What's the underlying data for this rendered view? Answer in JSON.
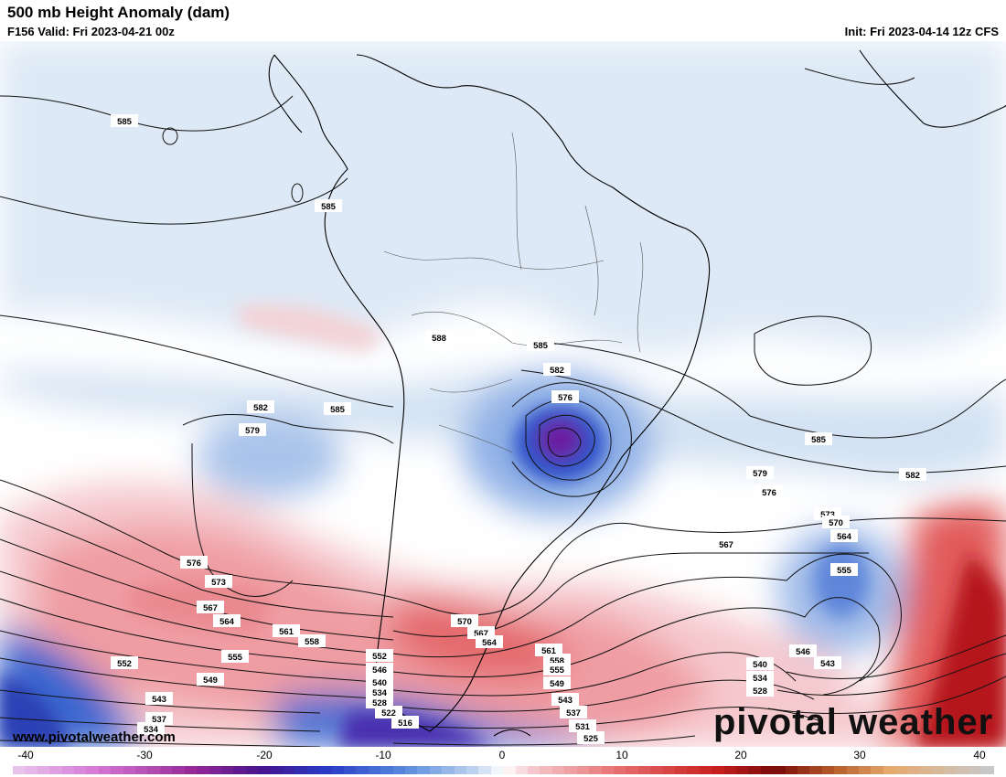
{
  "header": {
    "title": "500 mb Height Anomaly (dam)",
    "valid": "F156 Valid: Fri 2023-04-21 00z",
    "init": "Init: Fri 2023-04-14 12z CFS"
  },
  "watermark": "www.pivotalweather.com",
  "brand": "pivotal weather",
  "colorbar": {
    "ticks": [
      "-40",
      "-30",
      "-20",
      "-10",
      "0",
      "10",
      "20",
      "30",
      "40"
    ]
  },
  "contour_labels": [
    "585",
    "585",
    "585",
    "588",
    "585",
    "582",
    "582",
    "576",
    "585",
    "582",
    "579",
    "576",
    "573",
    "570",
    "564",
    "555",
    "567",
    "546",
    "543",
    "540",
    "534",
    "528",
    "579",
    "576",
    "573",
    "567",
    "564",
    "561",
    "558",
    "555",
    "552",
    "549",
    "543",
    "537",
    "534",
    "552",
    "546",
    "540",
    "534",
    "528",
    "522",
    "516",
    "570",
    "567",
    "564",
    "561",
    "558",
    "555",
    "549",
    "543",
    "537",
    "531",
    "525"
  ],
  "colors": {
    "negative_deep": "#6a1fa0",
    "negative_mid": "#2f5fcf",
    "negative_light": "#dbe8f6",
    "positive_light": "#f6d6d9",
    "positive_mid": "#e05d5d",
    "positive_deep": "#b5121b"
  }
}
